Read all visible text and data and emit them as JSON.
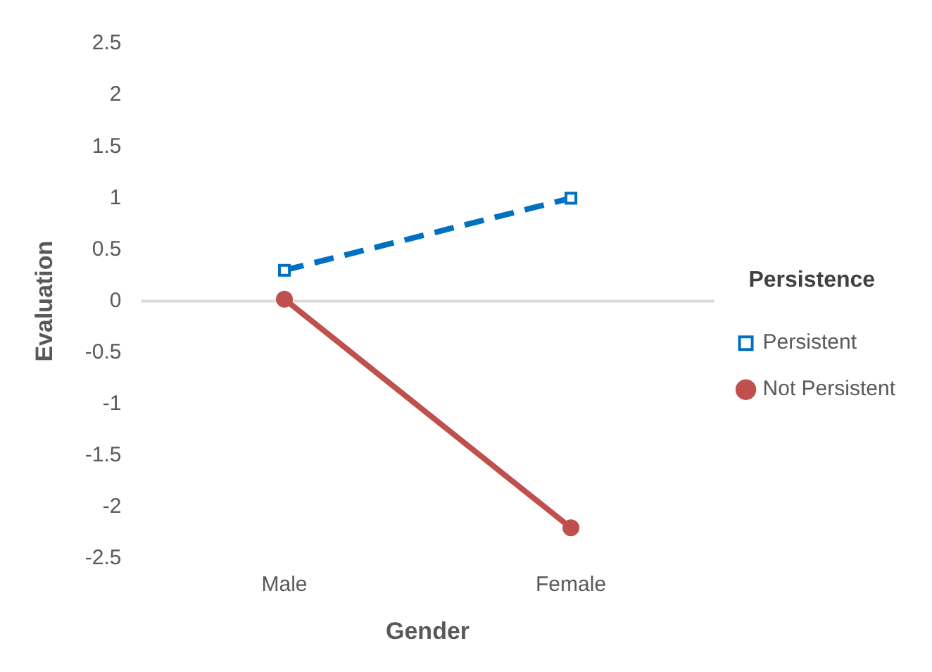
{
  "chart_data": {
    "type": "line",
    "xlabel": "Gender",
    "ylabel": "Evaluation",
    "legend_title": "Persistence",
    "categories": [
      "Male",
      "Female"
    ],
    "series": [
      {
        "name": "Persistent",
        "color": "#0070c0",
        "values": [
          0.3,
          1.0
        ],
        "marker": "square",
        "line_style": "dashed"
      },
      {
        "name": "Not Persistent",
        "color": "#c0504d",
        "values": [
          0.02,
          -2.2
        ],
        "marker": "circle",
        "line_style": "solid"
      }
    ],
    "ylim": [
      -2.5,
      2.5
    ],
    "yticks": [
      -2.5,
      -2,
      -1.5,
      -1,
      -0.5,
      0,
      0.5,
      1,
      1.5,
      2,
      2.5
    ],
    "grid": false,
    "legend": "right",
    "ref_lines": [
      {
        "axis": "y",
        "value": 0,
        "color": "#d9d9d9"
      }
    ]
  }
}
